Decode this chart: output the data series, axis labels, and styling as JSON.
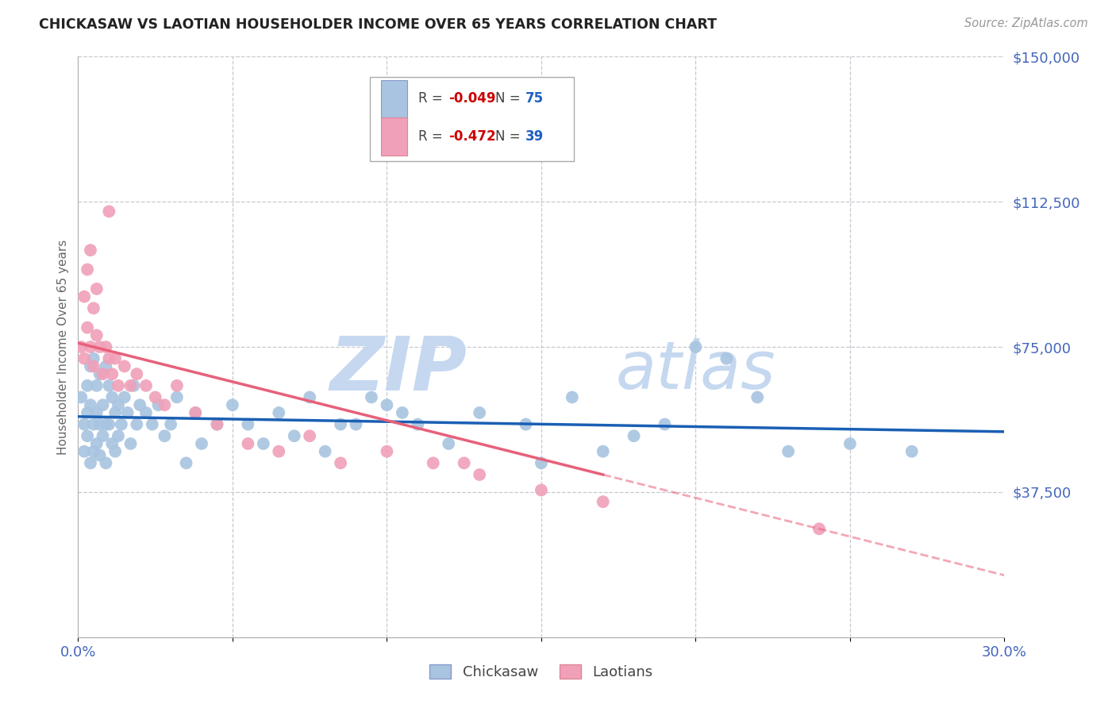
{
  "title": "CHICKASAW VS LAOTIAN HOUSEHOLDER INCOME OVER 65 YEARS CORRELATION CHART",
  "source": "Source: ZipAtlas.com",
  "ylabel": "Householder Income Over 65 years",
  "xlim": [
    0.0,
    0.3
  ],
  "ylim": [
    0,
    150000
  ],
  "yticks": [
    0,
    37500,
    75000,
    112500,
    150000
  ],
  "ytick_labels": [
    "",
    "$37,500",
    "$75,000",
    "$112,500",
    "$150,000"
  ],
  "xticks": [
    0.0,
    0.05,
    0.1,
    0.15,
    0.2,
    0.25,
    0.3
  ],
  "xtick_labels": [
    "0.0%",
    "",
    "",
    "",
    "",
    "",
    "30.0%"
  ],
  "background_color": "#ffffff",
  "grid_color": "#c8c8d0",
  "chickasaw_color": "#a8c4e0",
  "laotian_color": "#f0a0b8",
  "chickasaw_line_color": "#1a5fb4",
  "laotian_line_color": "#e8607a",
  "R_chickasaw": -0.049,
  "N_chickasaw": 75,
  "R_laotian": -0.472,
  "N_laotian": 39,
  "watermark_zip": "ZIP",
  "watermark_atlas": "atlas",
  "watermark_color_zip": "#c5d8f0",
  "watermark_color_atlas": "#c5d8f0",
  "chickasaw_x": [
    0.001,
    0.002,
    0.002,
    0.003,
    0.003,
    0.003,
    0.004,
    0.004,
    0.004,
    0.005,
    0.005,
    0.005,
    0.006,
    0.006,
    0.006,
    0.007,
    0.007,
    0.007,
    0.008,
    0.008,
    0.009,
    0.009,
    0.009,
    0.01,
    0.01,
    0.011,
    0.011,
    0.012,
    0.012,
    0.013,
    0.013,
    0.014,
    0.015,
    0.016,
    0.017,
    0.018,
    0.019,
    0.02,
    0.022,
    0.024,
    0.026,
    0.028,
    0.03,
    0.032,
    0.035,
    0.038,
    0.04,
    0.045,
    0.05,
    0.055,
    0.06,
    0.065,
    0.07,
    0.075,
    0.08,
    0.09,
    0.1,
    0.11,
    0.12,
    0.13,
    0.145,
    0.16,
    0.18,
    0.2,
    0.21,
    0.23,
    0.25,
    0.27,
    0.085,
    0.095,
    0.105,
    0.15,
    0.17,
    0.19,
    0.22
  ],
  "chickasaw_y": [
    62000,
    55000,
    48000,
    65000,
    58000,
    52000,
    70000,
    60000,
    45000,
    72000,
    55000,
    48000,
    65000,
    58000,
    50000,
    68000,
    55000,
    47000,
    60000,
    52000,
    70000,
    55000,
    45000,
    65000,
    55000,
    62000,
    50000,
    58000,
    48000,
    60000,
    52000,
    55000,
    62000,
    58000,
    50000,
    65000,
    55000,
    60000,
    58000,
    55000,
    60000,
    52000,
    55000,
    62000,
    45000,
    58000,
    50000,
    55000,
    60000,
    55000,
    50000,
    58000,
    52000,
    62000,
    48000,
    55000,
    60000,
    55000,
    50000,
    58000,
    55000,
    62000,
    52000,
    75000,
    72000,
    48000,
    50000,
    48000,
    55000,
    62000,
    58000,
    45000,
    48000,
    55000,
    62000
  ],
  "laotian_x": [
    0.001,
    0.002,
    0.002,
    0.003,
    0.003,
    0.004,
    0.004,
    0.005,
    0.005,
    0.006,
    0.006,
    0.007,
    0.008,
    0.009,
    0.01,
    0.011,
    0.012,
    0.013,
    0.015,
    0.017,
    0.019,
    0.022,
    0.025,
    0.028,
    0.032,
    0.038,
    0.045,
    0.055,
    0.065,
    0.075,
    0.085,
    0.1,
    0.115,
    0.13,
    0.15,
    0.17,
    0.24,
    0.125,
    0.01
  ],
  "laotian_y": [
    75000,
    88000,
    72000,
    95000,
    80000,
    100000,
    75000,
    85000,
    70000,
    90000,
    78000,
    75000,
    68000,
    75000,
    72000,
    68000,
    72000,
    65000,
    70000,
    65000,
    68000,
    65000,
    62000,
    60000,
    65000,
    58000,
    55000,
    50000,
    48000,
    52000,
    45000,
    48000,
    45000,
    42000,
    38000,
    35000,
    28000,
    45000,
    110000
  ],
  "legend_R_color": "#cc0000",
  "legend_N_color": "#2060c0",
  "axis_label_color": "#4466bb",
  "axis_tick_color": "#4466bb"
}
